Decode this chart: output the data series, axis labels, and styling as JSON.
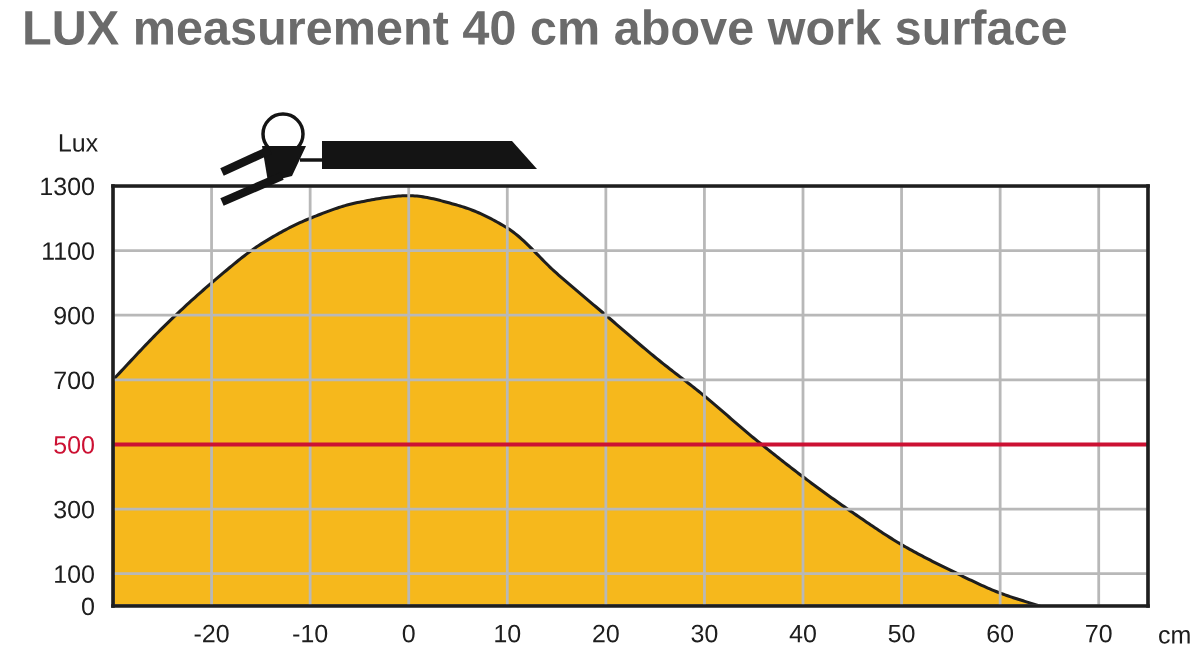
{
  "chart_data": {
    "type": "area",
    "title": "LUX measurement 40 cm above work surface",
    "xlabel": "cm",
    "ylabel": "Lux",
    "x": [
      -30,
      -25,
      -20,
      -15,
      -10,
      -5,
      0,
      5,
      10,
      15,
      20,
      25,
      30,
      35,
      40,
      45,
      50,
      55,
      60,
      64
    ],
    "series": [
      {
        "color": "#f6b81c",
        "values": [
          700,
          860,
          1000,
          1120,
          1200,
          1250,
          1270,
          1240,
          1170,
          1030,
          900,
          770,
          650,
          520,
          400,
          290,
          190,
          110,
          40,
          0
        ]
      }
    ],
    "xlim": [
      -30,
      75
    ],
    "ylim": [
      0,
      1300
    ],
    "xticks": [
      {
        "value": -30,
        "label": null
      },
      -20,
      -10,
      0,
      10,
      20,
      30,
      40,
      50,
      60,
      70,
      {
        "value": 75,
        "label": null
      }
    ],
    "yticks": [
      0,
      100,
      300,
      500,
      700,
      900,
      1100,
      1300
    ],
    "ref_lines": [
      {
        "axis": "y",
        "value": 500,
        "color": "#cc1133"
      }
    ],
    "grid": true
  }
}
